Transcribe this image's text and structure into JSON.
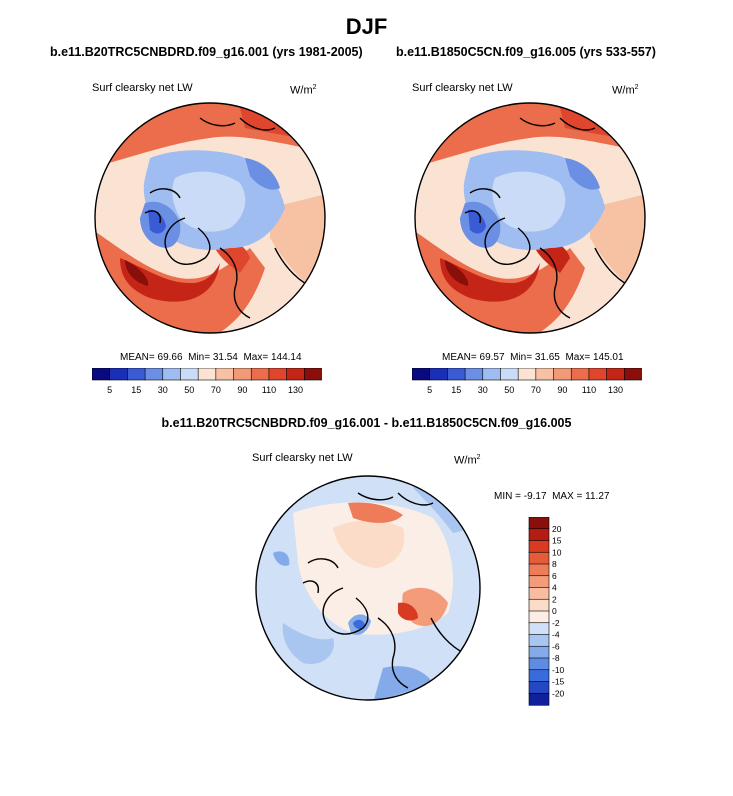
{
  "page": {
    "title": "DJF",
    "diff_title": "b.e11.B20TRC5CNBDRD.f09_g16.001 - b.e11.B1850C5CN.f09_g16.005"
  },
  "chart_data": [
    {
      "type": "heatmap",
      "projection": "north-polar-stereographic",
      "case_title": "b.e11.B20TRC5CNBDRD.f09_g16.001 (yrs 1981-2005)",
      "variable": "Surf clearsky net LW",
      "units": "W/m",
      "units_exp": "2",
      "stats": {
        "mean_label": "MEAN=",
        "mean": "69.66",
        "min_label": "Min=",
        "min": "31.54",
        "max_label": "Max=",
        "max": "144.14"
      },
      "levels": [
        5,
        15,
        30,
        50,
        70,
        90,
        110,
        130
      ],
      "colors": [
        "#0a0a80",
        "#1a2fb8",
        "#3a5ad6",
        "#6b8fe3",
        "#9fbdf0",
        "#c9dbf7",
        "#fbe3d4",
        "#f7c2a3",
        "#f29a76",
        "#ec6d4b",
        "#e0452d",
        "#c42516",
        "#8a0f0a"
      ]
    },
    {
      "type": "heatmap",
      "projection": "north-polar-stereographic",
      "case_title": "b.e11.B1850C5CN.f09_g16.005 (yrs 533-557)",
      "variable": "Surf clearsky net LW",
      "units": "W/m",
      "units_exp": "2",
      "stats": {
        "mean_label": "MEAN=",
        "mean": "69.57",
        "min_label": "Min=",
        "min": "31.65",
        "max_label": "Max=",
        "max": "145.01"
      },
      "levels": [
        5,
        15,
        30,
        50,
        70,
        90,
        110,
        130
      ],
      "colors": [
        "#0a0a80",
        "#1a2fb8",
        "#3a5ad6",
        "#6b8fe3",
        "#9fbdf0",
        "#c9dbf7",
        "#fbe3d4",
        "#f7c2a3",
        "#f29a76",
        "#ec6d4b",
        "#e0452d",
        "#c42516",
        "#8a0f0a"
      ]
    },
    {
      "type": "heatmap",
      "projection": "north-polar-stereographic",
      "case_title": "",
      "variable": "Surf clearsky net LW",
      "units": "W/m",
      "units_exp": "2",
      "minmax": {
        "min_label": "MIN =",
        "min": "-9.17",
        "max_label": "MAX =",
        "max": "11.27"
      },
      "levels": [
        "20",
        "15",
        "10",
        "8",
        "6",
        "4",
        "2",
        "0",
        "-2",
        "-4",
        "-6",
        "-8",
        "-10",
        "-15",
        "-20"
      ],
      "colors": [
        "#8a0f0a",
        "#b51d12",
        "#d83a22",
        "#e65b3a",
        "#ef7c58",
        "#f49c7a",
        "#f8bda0",
        "#fbdcc8",
        "#fbeee6",
        "#cfe0f7",
        "#a9c6f0",
        "#84aaea",
        "#5e8be3",
        "#3a6bdb",
        "#2448c4",
        "#10209a"
      ]
    }
  ]
}
